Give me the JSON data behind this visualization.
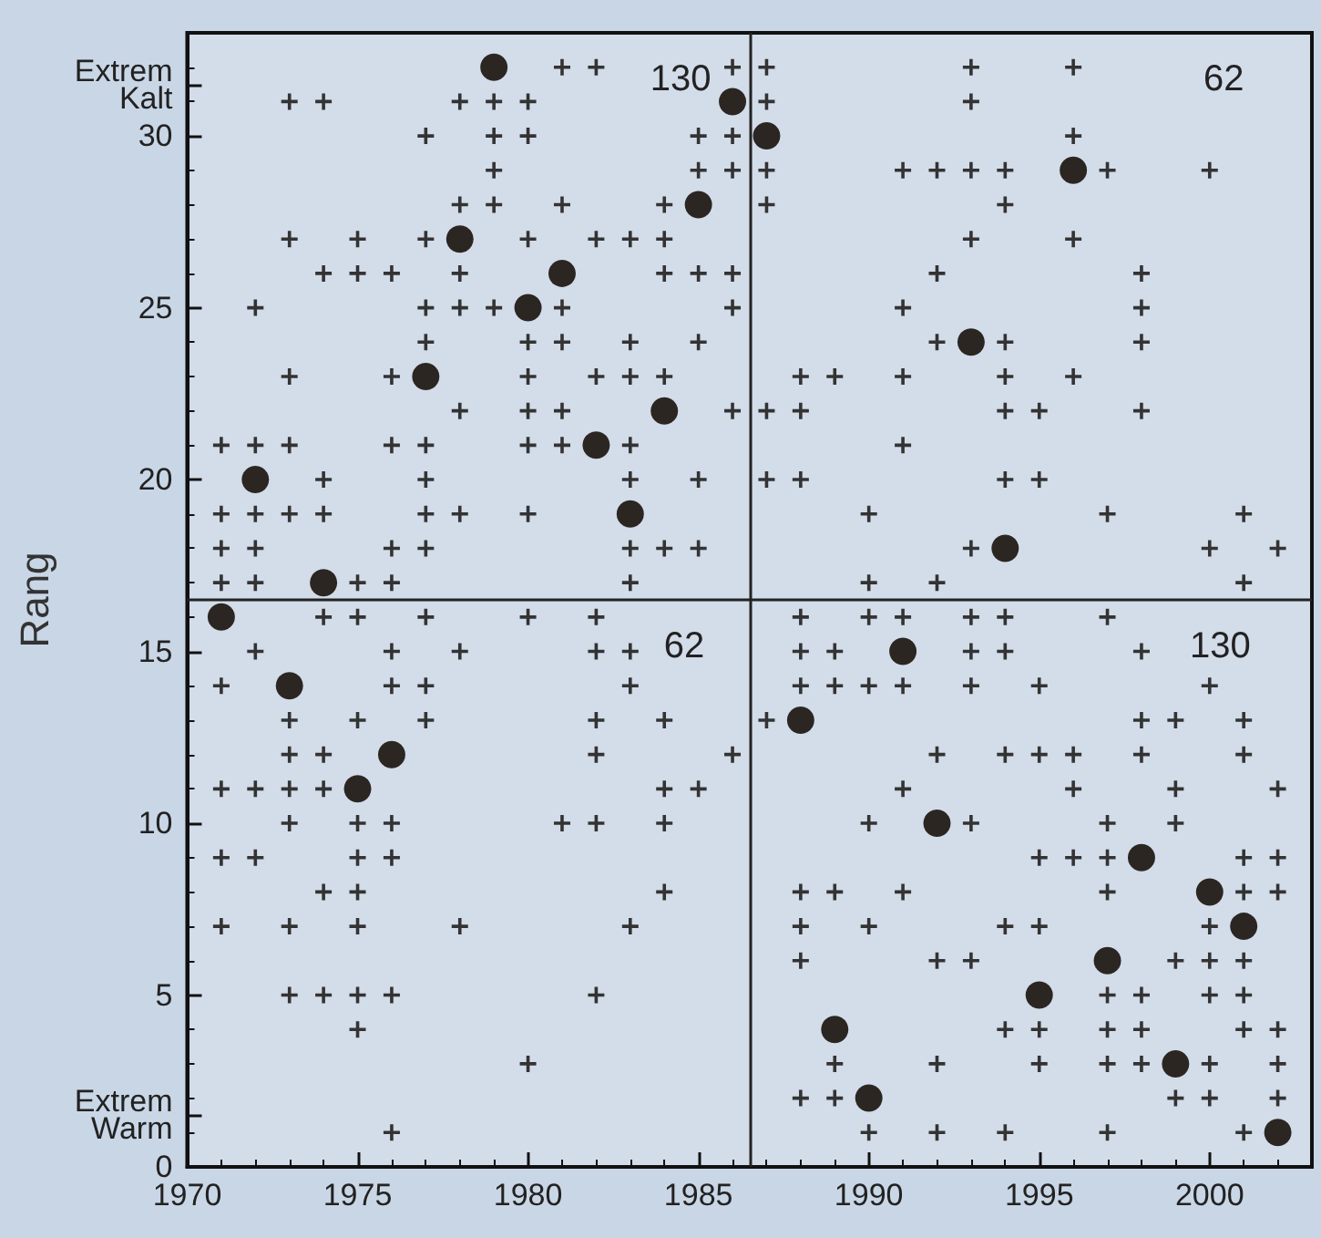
{
  "chart_data": {
    "type": "scatter",
    "ylabel": "Rang",
    "xlim": [
      1970,
      2003
    ],
    "xticks": [
      1970,
      1975,
      1980,
      1985,
      1990,
      1995,
      2000
    ],
    "ylim": [
      0,
      33
    ],
    "yticks": [
      0,
      5,
      10,
      15,
      20,
      25,
      30,
      {
        "value": 1.5,
        "label": "Extrem Warm"
      },
      {
        "value": 31.5,
        "label": "Extrem Kalt"
      }
    ],
    "grid": false,
    "ref_lines": [
      {
        "axis": "x",
        "value": 1986.5,
        "color": "#222222"
      },
      {
        "axis": "y",
        "value": 16.5,
        "color": "#222222"
      }
    ],
    "annotations": [
      "130",
      "62",
      "62",
      "130"
    ],
    "series": [
      {
        "marker": "cross",
        "color": "#333333",
        "x": [
          1971,
          1971,
          1971,
          1971,
          1971,
          1971,
          1971,
          1971,
          1972,
          1972,
          1972,
          1972,
          1972,
          1972,
          1972,
          1972,
          1973,
          1973,
          1973,
          1973,
          1973,
          1973,
          1973,
          1973,
          1973,
          1973,
          1973,
          1974,
          1974,
          1974,
          1974,
          1974,
          1974,
          1974,
          1974,
          1974,
          1975,
          1975,
          1975,
          1975,
          1975,
          1975,
          1975,
          1975,
          1975,
          1975,
          1975,
          1976,
          1976,
          1976,
          1976,
          1976,
          1976,
          1976,
          1976,
          1976,
          1976,
          1976,
          1977,
          1977,
          1977,
          1977,
          1977,
          1977,
          1977,
          1977,
          1977,
          1977,
          1977,
          1978,
          1978,
          1978,
          1978,
          1978,
          1978,
          1978,
          1978,
          1979,
          1979,
          1979,
          1979,
          1979,
          1980,
          1980,
          1980,
          1980,
          1980,
          1980,
          1980,
          1980,
          1980,
          1980,
          1981,
          1981,
          1981,
          1981,
          1981,
          1981,
          1981,
          1982,
          1982,
          1982,
          1982,
          1982,
          1982,
          1982,
          1982,
          1982,
          1983,
          1983,
          1983,
          1983,
          1983,
          1983,
          1983,
          1983,
          1983,
          1983,
          1984,
          1984,
          1984,
          1984,
          1984,
          1984,
          1984,
          1984,
          1984,
          1985,
          1985,
          1985,
          1985,
          1985,
          1985,
          1985,
          1986,
          1986,
          1986,
          1986,
          1986,
          1986,
          1986,
          1987,
          1987,
          1987,
          1987,
          1987,
          1987,
          1987,
          1988,
          1988,
          1988,
          1988,
          1988,
          1988,
          1988,
          1988,
          1988,
          1988,
          1989,
          1989,
          1989,
          1989,
          1989,
          1989,
          1990,
          1990,
          1990,
          1990,
          1990,
          1990,
          1990,
          1991,
          1991,
          1991,
          1991,
          1991,
          1991,
          1991,
          1991,
          1992,
          1992,
          1992,
          1992,
          1992,
          1992,
          1992,
          1992,
          1993,
          1993,
          1993,
          1993,
          1993,
          1993,
          1993,
          1993,
          1993,
          1993,
          1994,
          1994,
          1994,
          1994,
          1994,
          1994,
          1994,
          1994,
          1994,
          1994,
          1994,
          1994,
          1995,
          1995,
          1995,
          1995,
          1995,
          1995,
          1995,
          1995,
          1996,
          1996,
          1996,
          1996,
          1996,
          1996,
          1996,
          1997,
          1997,
          1997,
          1997,
          1997,
          1997,
          1997,
          1997,
          1997,
          1997,
          1998,
          1998,
          1998,
          1998,
          1998,
          1998,
          1998,
          1998,
          1998,
          1998,
          1999,
          1999,
          1999,
          1999,
          1999,
          2000,
          2000,
          2000,
          2000,
          2000,
          2000,
          2000,
          2000,
          2001,
          2001,
          2001,
          2001,
          2001,
          2001,
          2001,
          2001,
          2001,
          2001,
          2002,
          2002,
          2002,
          2002,
          2002,
          2002,
          2002
        ],
        "values": [
          21,
          19,
          18,
          17,
          14,
          11,
          9,
          7,
          25,
          21,
          19,
          18,
          17,
          15,
          11,
          9,
          31,
          27,
          23,
          21,
          19,
          13,
          12,
          11,
          10,
          7,
          5,
          31,
          26,
          20,
          19,
          16,
          12,
          11,
          8,
          5,
          27,
          26,
          17,
          16,
          13,
          10,
          9,
          8,
          7,
          5,
          4,
          26,
          23,
          21,
          18,
          17,
          15,
          14,
          10,
          9,
          5,
          1,
          30,
          27,
          25,
          24,
          21,
          20,
          19,
          18,
          16,
          14,
          13,
          31,
          28,
          26,
          25,
          22,
          19,
          15,
          7,
          31,
          30,
          29,
          28,
          25,
          31,
          30,
          27,
          24,
          23,
          22,
          21,
          19,
          16,
          3,
          32,
          28,
          25,
          24,
          22,
          21,
          10,
          32,
          27,
          23,
          16,
          15,
          13,
          12,
          10,
          5,
          27,
          24,
          23,
          21,
          20,
          18,
          17,
          15,
          14,
          7,
          28,
          27,
          26,
          23,
          18,
          13,
          11,
          10,
          8,
          30,
          29,
          26,
          24,
          20,
          18,
          11,
          32,
          30,
          29,
          26,
          25,
          22,
          12,
          32,
          31,
          29,
          28,
          22,
          20,
          13,
          22,
          23,
          20,
          16,
          15,
          14,
          8,
          7,
          6,
          2,
          23,
          15,
          14,
          8,
          3,
          2,
          19,
          17,
          16,
          14,
          10,
          7,
          1,
          29,
          25,
          23,
          21,
          16,
          14,
          11,
          8,
          29,
          26,
          24,
          17,
          12,
          6,
          3,
          1,
          32,
          31,
          29,
          27,
          18,
          16,
          15,
          14,
          10,
          6,
          29,
          28,
          24,
          23,
          22,
          20,
          16,
          15,
          12,
          7,
          4,
          1,
          22,
          20,
          14,
          12,
          9,
          7,
          4,
          3,
          32,
          30,
          27,
          23,
          12,
          11,
          9,
          29,
          19,
          16,
          10,
          9,
          8,
          5,
          4,
          3,
          1,
          26,
          25,
          24,
          22,
          15,
          13,
          12,
          5,
          4,
          3,
          13,
          11,
          10,
          6,
          2,
          29,
          18,
          14,
          7,
          6,
          5,
          3,
          2,
          19,
          17,
          13,
          12,
          9,
          8,
          6,
          5,
          4,
          1,
          18,
          11,
          9,
          8,
          4,
          3,
          2
        ]
      },
      {
        "marker": "circle",
        "color": "#2b2622",
        "x": [
          1971,
          1972,
          1973,
          1974,
          1975,
          1976,
          1977,
          1978,
          1979,
          1980,
          1981,
          1982,
          1983,
          1984,
          1985,
          1986,
          1987,
          1988,
          1989,
          1990,
          1991,
          1992,
          1993,
          1994,
          1995,
          1996,
          1997,
          1998,
          1999,
          2000,
          2001,
          2002
        ],
        "values": [
          16,
          20,
          14,
          17,
          11,
          12,
          23,
          27,
          32,
          25,
          26,
          21,
          19,
          22,
          28,
          31,
          30,
          13,
          4,
          2,
          15,
          10,
          24,
          18,
          5,
          29,
          6,
          9,
          3,
          8,
          7,
          1
        ]
      }
    ]
  }
}
